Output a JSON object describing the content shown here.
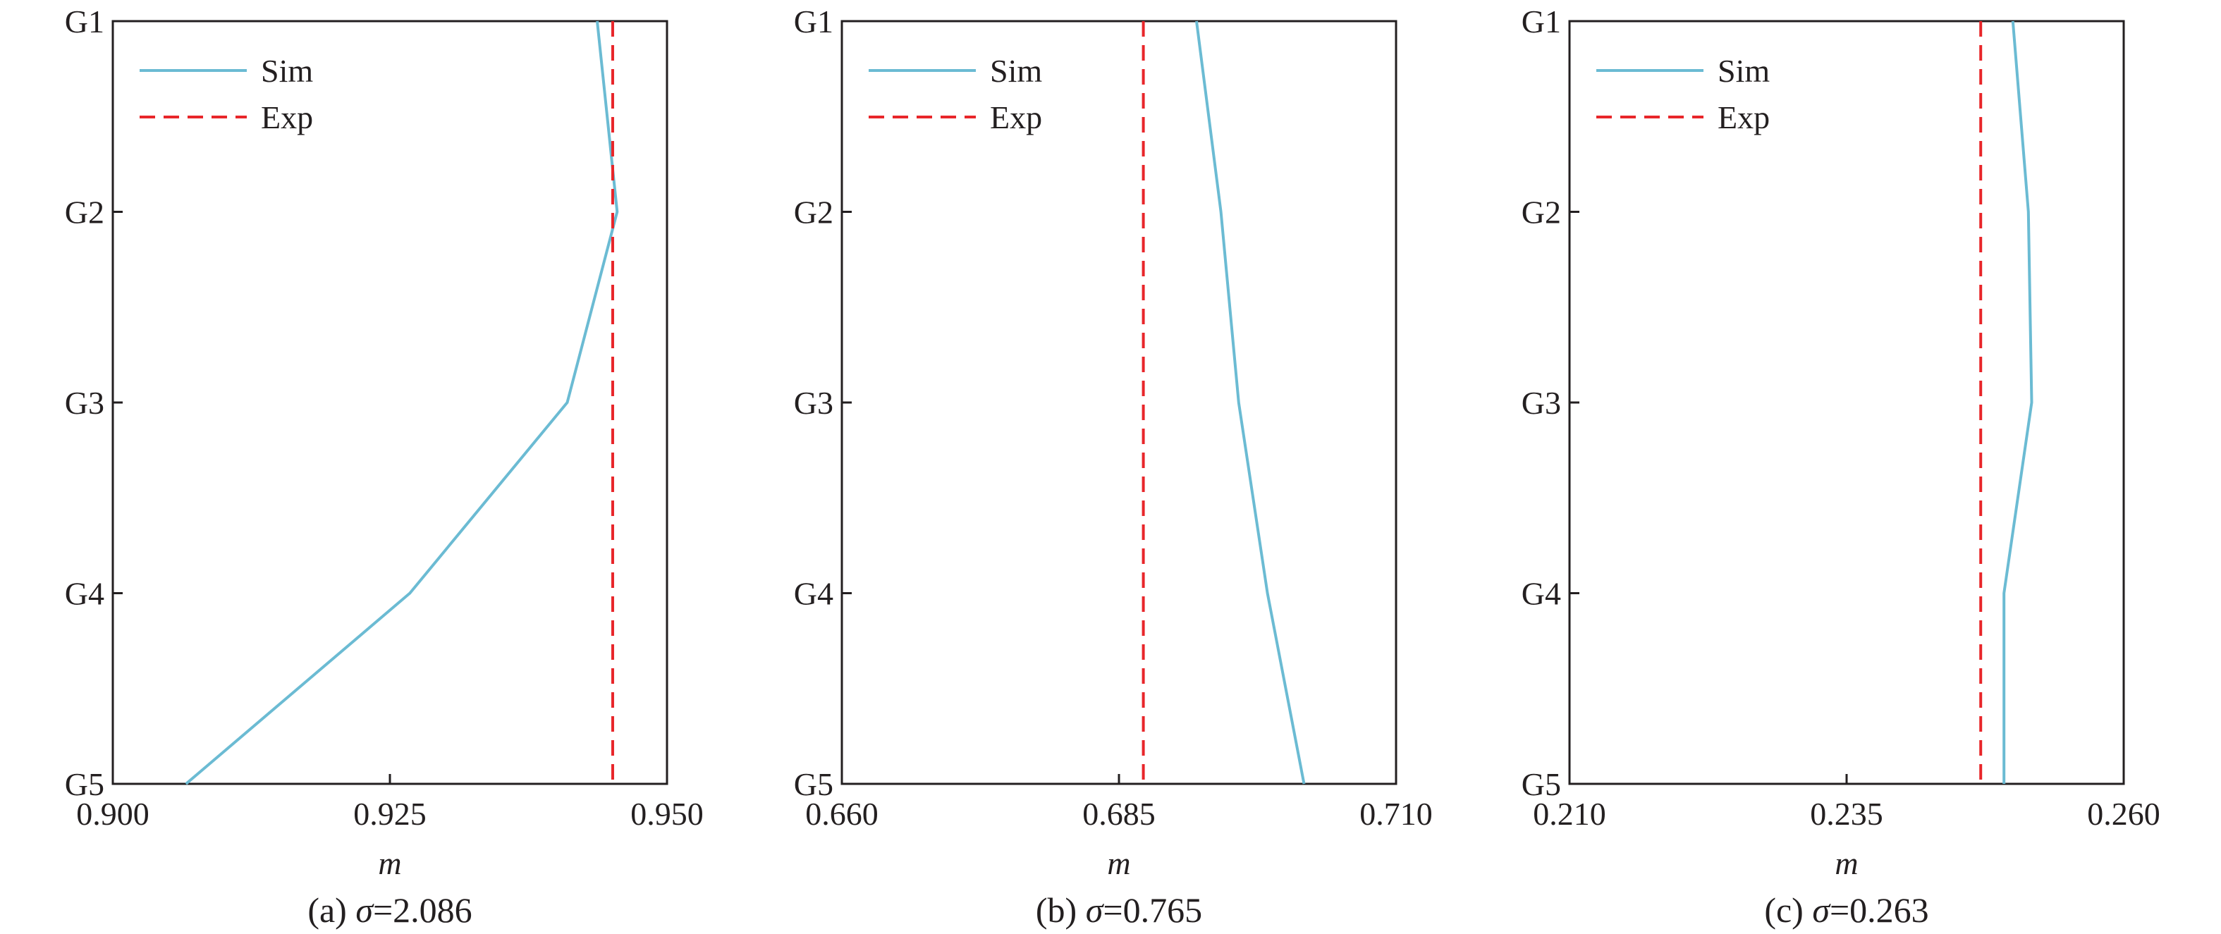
{
  "chart_data": [
    {
      "type": "line",
      "caption_prefix": "(a) ",
      "caption_symbol": "σ",
      "caption_value": "=2.086",
      "xlabel": "m",
      "xlim": [
        0.9,
        0.95
      ],
      "xticks": [
        0.9,
        0.925,
        0.95
      ],
      "xtick_labels": [
        "0.900",
        "0.925",
        "0.950"
      ],
      "y_categories": [
        "G1",
        "G2",
        "G3",
        "G4",
        "G5"
      ],
      "legend": {
        "position": "top-left",
        "entries": [
          "Sim",
          "Exp"
        ]
      },
      "series": [
        {
          "name": "Sim",
          "style": "solid",
          "color": "#6bbbd3",
          "points": [
            [
              "G1",
              0.9437
            ],
            [
              "G2",
              0.9455
            ],
            [
              "G3",
              0.941
            ],
            [
              "G4",
              0.9268
            ],
            [
              "G5",
              0.9066
            ]
          ]
        },
        {
          "name": "Exp",
          "style": "dashed",
          "color": "#e8262a",
          "constant_x": 0.9451
        }
      ]
    },
    {
      "type": "line",
      "caption_prefix": "(b) ",
      "caption_symbol": "σ",
      "caption_value": "=0.765",
      "xlabel": "m",
      "xlim": [
        0.66,
        0.71
      ],
      "xticks": [
        0.66,
        0.685,
        0.71
      ],
      "xtick_labels": [
        "0.660",
        "0.685",
        "0.710"
      ],
      "y_categories": [
        "G1",
        "G2",
        "G3",
        "G4",
        "G5"
      ],
      "legend": {
        "position": "top-left",
        "entries": [
          "Sim",
          "Exp"
        ]
      },
      "series": [
        {
          "name": "Sim",
          "style": "solid",
          "color": "#6bbbd3",
          "points": [
            [
              "G1",
              0.692
            ],
            [
              "G2",
              0.6942
            ],
            [
              "G3",
              0.6958
            ],
            [
              "G4",
              0.6984
            ],
            [
              "G5",
              0.7017
            ]
          ]
        },
        {
          "name": "Exp",
          "style": "dashed",
          "color": "#e8262a",
          "constant_x": 0.6872
        }
      ]
    },
    {
      "type": "line",
      "caption_prefix": "(c) ",
      "caption_symbol": "σ",
      "caption_value": "=0.263",
      "xlabel": "m",
      "xlim": [
        0.21,
        0.26
      ],
      "xticks": [
        0.21,
        0.235,
        0.26
      ],
      "xtick_labels": [
        "0.210",
        "0.235",
        "0.260"
      ],
      "y_categories": [
        "G1",
        "G2",
        "G3",
        "G4",
        "G5"
      ],
      "legend": {
        "position": "top-left",
        "entries": [
          "Sim",
          "Exp"
        ]
      },
      "series": [
        {
          "name": "Sim",
          "style": "solid",
          "color": "#6bbbd3",
          "points": [
            [
              "G1",
              0.25
            ],
            [
              "G2",
              0.2514
            ],
            [
              "G3",
              0.2517
            ],
            [
              "G4",
              0.2492
            ],
            [
              "G5",
              0.2492
            ]
          ]
        },
        {
          "name": "Exp",
          "style": "dashed",
          "color": "#e8262a",
          "constant_x": 0.2471
        }
      ]
    }
  ]
}
